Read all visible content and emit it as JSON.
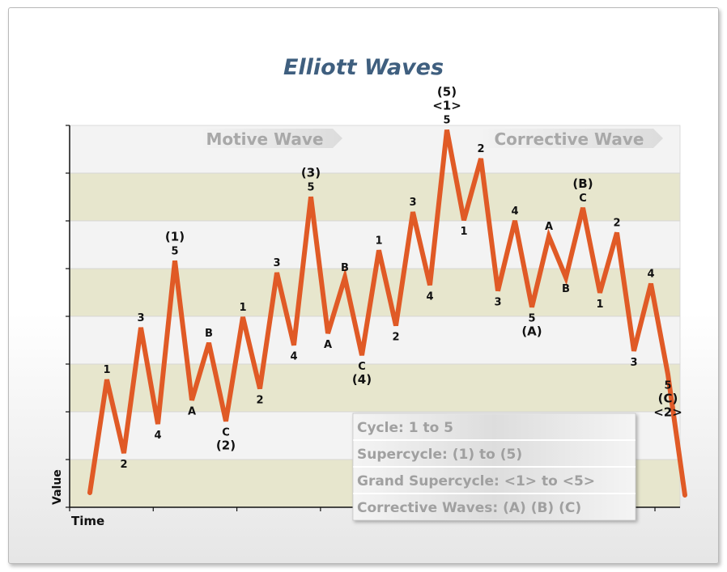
{
  "chart_data": {
    "type": "line",
    "title": "Elliott Waves",
    "xlabel": "Time",
    "ylabel": "Value",
    "grid": "alternating-horizontal-bands",
    "colors": {
      "line": "#e05a26",
      "band_light": "#f3f3f3",
      "band_dark": "#e7e6cd",
      "title": "#3f5f7f",
      "label": "#111111",
      "banner_text": "#a8a8a8",
      "legend_text": "#a0a0a0"
    },
    "x": [
      0,
      1,
      2,
      3,
      4,
      5,
      6,
      7,
      8,
      9,
      10,
      11,
      12,
      13,
      14,
      15,
      16,
      17,
      18,
      19,
      20,
      21,
      22,
      23,
      24,
      25,
      26,
      27,
      28,
      29,
      30,
      31,
      32,
      33,
      34,
      35
    ],
    "y": [
      0.5,
      24.2,
      8.8,
      35.1,
      14.9,
      49.1,
      19.9,
      31.9,
      15.5,
      37.3,
      22.3,
      46.6,
      31.4,
      62.5,
      33.9,
      45.6,
      29.3,
      51.3,
      35.5,
      59.3,
      44.0,
      76.5,
      57.6,
      70.5,
      42.8,
      57.5,
      39.4,
      54.2,
      45.6,
      60.2,
      42.4,
      55.0,
      30.2,
      44.3,
      25.3,
      0
    ],
    "point_labels": [
      "",
      "1",
      "2",
      "3",
      "4",
      "5",
      "A",
      "B",
      "C",
      "1",
      "2",
      "3",
      "4",
      "5",
      "A",
      "B",
      "C",
      "1",
      "2",
      "3",
      "4",
      "5",
      "1",
      "2",
      "3",
      "4",
      "5",
      "A",
      "B",
      "C",
      "1",
      "2",
      "3",
      "4",
      "5",
      ""
    ],
    "degree_labels": {
      "5": "(1)",
      "8": "(2)",
      "13": "(3)",
      "16": "(4)",
      "21": "<1>|(5)",
      "26": "(A)",
      "29": "(B)",
      "34": "(C)|<2>"
    },
    "banners": [
      "Motive Wave",
      "Corrective Wave"
    ],
    "legend": [
      "Cycle: 1 to 5",
      "Supercycle: (1) to (5)",
      "Grand Supercycle: <1> to <5>",
      "Corrective Waves: (A) (B) (C)"
    ]
  }
}
